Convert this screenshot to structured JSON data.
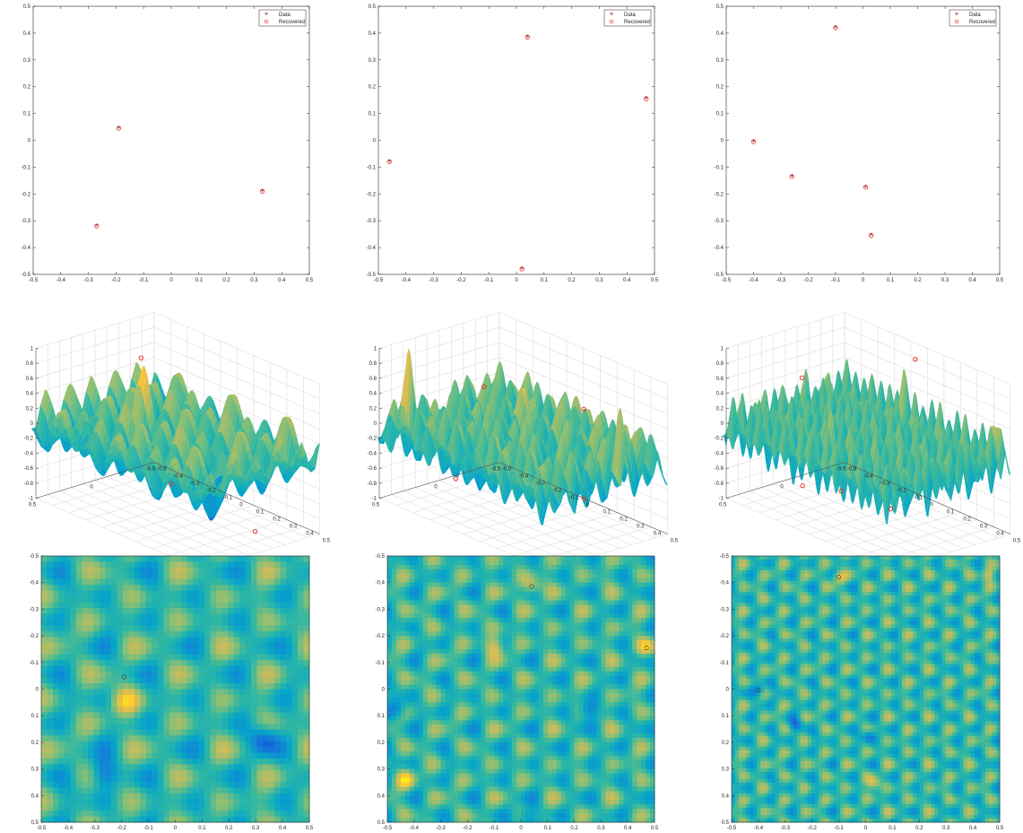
{
  "legend": {
    "data_label": "Data",
    "recovered_label": "Recovered"
  },
  "colors": {
    "data_marker": "#8b1a1a",
    "recovered_marker": "#e8322e",
    "colormap": [
      "#352a87",
      "#0f5cdd",
      "#1481d6",
      "#06a4ca",
      "#2eb7a4",
      "#87bf77",
      "#d1bb59",
      "#fec832",
      "#f9fb0e"
    ]
  },
  "chart_data": [
    {
      "id": "scatter-1",
      "type": "scatter",
      "xlim": [
        -0.5,
        0.5
      ],
      "ylim": [
        -0.5,
        0.5
      ],
      "xticks": [
        "-0.5",
        "-0.4",
        "-0.3",
        "-0.2",
        "-0.1",
        "0",
        "0.1",
        "0.2",
        "0.3",
        "0.4",
        "0.5"
      ],
      "yticks": [
        "0.5",
        "0.4",
        "0.3",
        "0.2",
        "0.1",
        "0",
        "-0.1",
        "-0.2",
        "-0.3",
        "-0.4",
        "-0.5"
      ],
      "legend_position": "top-right",
      "series": [
        {
          "name": "Data",
          "points": [
            [
              -0.19,
              0.045
            ],
            [
              0.33,
              -0.19
            ],
            [
              -0.27,
              -0.32
            ]
          ]
        },
        {
          "name": "Recovered",
          "points": [
            [
              -0.19,
              0.045
            ],
            [
              0.33,
              -0.19
            ],
            [
              -0.27,
              -0.32
            ]
          ]
        }
      ]
    },
    {
      "id": "scatter-2",
      "type": "scatter",
      "xlim": [
        -0.5,
        0.5
      ],
      "ylim": [
        -0.5,
        0.5
      ],
      "xticks": [
        "-0.5",
        "-0.4",
        "-0.3",
        "-0.2",
        "-0.1",
        "0",
        "0.1",
        "0.2",
        "0.3",
        "0.4",
        "0.5"
      ],
      "yticks": [
        "0.5",
        "0.4",
        "0.3",
        "0.2",
        "0.1",
        "0",
        "-0.1",
        "-0.2",
        "-0.3",
        "-0.4",
        "-0.5"
      ],
      "legend_position": "top-right",
      "series": [
        {
          "name": "Data",
          "points": [
            [
              0.04,
              0.385
            ],
            [
              0.47,
              0.155
            ],
            [
              -0.46,
              -0.08
            ],
            [
              0.02,
              -0.48
            ]
          ]
        },
        {
          "name": "Recovered",
          "points": [
            [
              0.04,
              0.385
            ],
            [
              0.47,
              0.155
            ],
            [
              -0.46,
              -0.08
            ],
            [
              0.02,
              -0.48
            ]
          ]
        }
      ]
    },
    {
      "id": "scatter-3",
      "type": "scatter",
      "xlim": [
        -0.5,
        0.5
      ],
      "ylim": [
        -0.5,
        0.5
      ],
      "xticks": [
        "-0.5",
        "-0.4",
        "-0.3",
        "-0.2",
        "-0.1",
        "0",
        "0.1",
        "0.2",
        "0.3",
        "0.4",
        "0.5"
      ],
      "yticks": [
        "0.5",
        "0.4",
        "0.3",
        "0.2",
        "0.1",
        "0",
        "-0.1",
        "-0.2",
        "-0.3",
        "-0.4",
        "-0.5"
      ],
      "legend_position": "top-right",
      "series": [
        {
          "name": "Data",
          "points": [
            [
              -0.1,
              0.42
            ],
            [
              -0.4,
              -0.005
            ],
            [
              -0.26,
              -0.135
            ],
            [
              0.01,
              -0.175
            ],
            [
              0.03,
              -0.355
            ]
          ]
        },
        {
          "name": "Recovered",
          "points": [
            [
              -0.1,
              0.42
            ],
            [
              -0.4,
              -0.005
            ],
            [
              -0.26,
              -0.135
            ],
            [
              0.01,
              -0.175
            ],
            [
              0.03,
              -0.355
            ]
          ]
        }
      ]
    },
    {
      "id": "surface-1",
      "type": "area",
      "view": "3d-surface",
      "zlim": [
        -1,
        1
      ],
      "zticks": [
        "1",
        "0.8",
        "0.6",
        "0.4",
        "0.2",
        "0",
        "-0.2",
        "-0.4",
        "-0.6",
        "-0.8",
        "-1"
      ],
      "x_ticks": [
        "-0.5",
        "0",
        "0.5"
      ],
      "y_ticks": [
        "-0.5",
        "-0.4",
        "-0.3",
        "-0.2",
        "-0.1",
        "0",
        "0.1",
        "0.2",
        "0.3",
        "0.4",
        "0.5"
      ],
      "peaks": [
        [
          -0.19,
          0.045
        ]
      ],
      "troughs": [
        [
          0.33,
          -0.19
        ],
        [
          -0.27,
          -0.32
        ]
      ]
    },
    {
      "id": "surface-2",
      "type": "area",
      "view": "3d-surface",
      "zlim": [
        -1,
        1
      ],
      "zticks": [
        "1",
        "0.8",
        "0.6",
        "0.4",
        "0.2",
        "0",
        "-0.2",
        "-0.4",
        "-0.6",
        "-0.8",
        "-1"
      ],
      "x_ticks": [
        "-0.5",
        "0",
        "0.5"
      ],
      "y_ticks": [
        "-0.5",
        "-0.4",
        "-0.3",
        "-0.2",
        "-0.1",
        "0",
        "0.1",
        "0.2",
        "0.3",
        "0.4",
        "0.5"
      ],
      "peaks": [
        [
          0.04,
          0.385
        ],
        [
          0.47,
          0.155
        ]
      ],
      "troughs": [
        [
          -0.46,
          -0.08
        ],
        [
          0.02,
          -0.48
        ]
      ]
    },
    {
      "id": "surface-3",
      "type": "area",
      "view": "3d-surface",
      "zlim": [
        -1,
        1
      ],
      "zticks": [
        "1",
        "0.8",
        "0.6",
        "0.4",
        "0.2",
        "0",
        "-0.2",
        "-0.4",
        "-0.6",
        "-0.8",
        "-1"
      ],
      "x_ticks": [
        "-0.5",
        "0",
        "0.5"
      ],
      "y_ticks": [
        "-0.5",
        "-0.4",
        "-0.3",
        "-0.2",
        "-0.1",
        "0",
        "0.1",
        "0.2",
        "0.3",
        "0.4",
        "0.5"
      ],
      "peaks": [
        [
          -0.1,
          0.42
        ],
        [
          0.03,
          -0.355
        ]
      ],
      "troughs": [
        [
          -0.4,
          -0.005
        ],
        [
          -0.26,
          -0.135
        ],
        [
          0.01,
          -0.175
        ]
      ]
    },
    {
      "id": "heatmap-1",
      "type": "heatmap",
      "xlim": [
        -0.5,
        0.5
      ],
      "ylim": [
        -0.5,
        0.5
      ],
      "y_reversed": true,
      "xticks": [
        "-0.5",
        "-0.4",
        "-0.3",
        "-0.2",
        "-0.1",
        "0",
        "0.1",
        "0.2",
        "0.3",
        "0.4",
        "0.5"
      ],
      "yticks": [
        "-0.5",
        "-0.4",
        "-0.3",
        "-0.2",
        "-0.1",
        "0",
        "0.1",
        "0.2",
        "0.3",
        "0.4",
        "0.5"
      ],
      "frequency": 12,
      "maxima": [
        [
          -0.19,
          0.05
        ]
      ],
      "minima": [
        [
          0.33,
          0.19
        ],
        [
          -0.27,
          0.32
        ]
      ]
    },
    {
      "id": "heatmap-2",
      "type": "heatmap",
      "xlim": [
        -0.5,
        0.5
      ],
      "ylim": [
        -0.5,
        0.5
      ],
      "y_reversed": true,
      "xticks": [
        "-0.5",
        "-0.4",
        "-0.3",
        "-0.2",
        "-0.1",
        "0",
        "0.1",
        "0.2",
        "0.3",
        "0.4",
        "0.5"
      ],
      "yticks": [
        "-0.5",
        "-0.4",
        "-0.3",
        "-0.2",
        "-0.1",
        "0",
        "0.1",
        "0.2",
        "0.3",
        "0.4",
        "0.5"
      ],
      "frequency": 18,
      "maxima": [
        [
          0.04,
          -0.385
        ],
        [
          0.47,
          -0.155
        ],
        [
          -0.1,
          -0.16
        ],
        [
          -0.43,
          0.34
        ]
      ],
      "minima": [
        [
          -0.46,
          0.08
        ],
        [
          0.02,
          0.48
        ],
        [
          0.25,
          0.08
        ]
      ]
    },
    {
      "id": "heatmap-3",
      "type": "heatmap",
      "xlim": [
        -0.5,
        0.5
      ],
      "ylim": [
        -0.5,
        0.5
      ],
      "y_reversed": true,
      "xticks": [
        "-0.5",
        "-0.4",
        "-0.3",
        "-0.2",
        "-0.1",
        "0",
        "0.1",
        "0.2",
        "0.3",
        "0.4",
        "0.5"
      ],
      "yticks": [
        "-0.5",
        "-0.4",
        "-0.3",
        "-0.2",
        "-0.1",
        "0",
        "0.1",
        "0.2",
        "0.3",
        "0.4",
        "0.5"
      ],
      "frequency": 26,
      "maxima": [
        [
          -0.1,
          -0.42
        ],
        [
          0.03,
          0.355
        ],
        [
          0.46,
          -0.43
        ]
      ],
      "minima": [
        [
          -0.4,
          0.005
        ],
        [
          -0.26,
          0.135
        ],
        [
          0.01,
          0.175
        ]
      ]
    }
  ]
}
